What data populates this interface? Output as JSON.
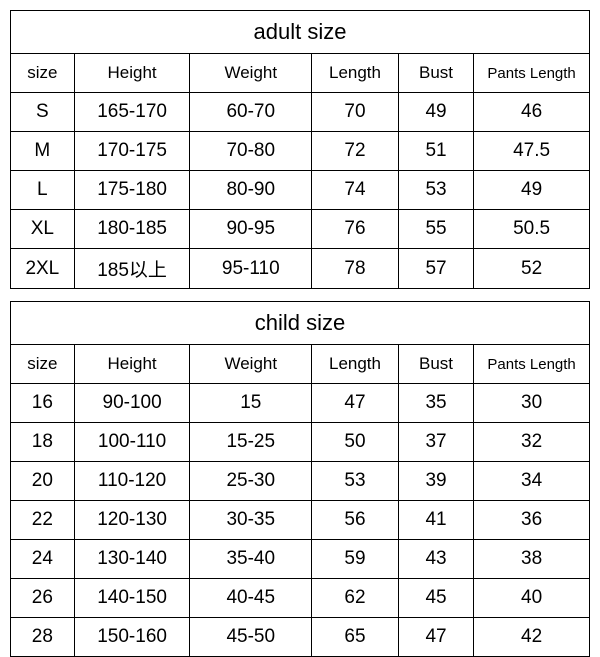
{
  "adult_table": {
    "title": "adult size",
    "columns": [
      "size",
      "Height",
      "Weight",
      "Length",
      "Bust",
      "Pants Length"
    ],
    "rows": [
      [
        "S",
        "165-170",
        "60-70",
        "70",
        "49",
        "46"
      ],
      [
        "M",
        "170-175",
        "70-80",
        "72",
        "51",
        "47.5"
      ],
      [
        "L",
        "175-180",
        "80-90",
        "74",
        "53",
        "49"
      ],
      [
        "XL",
        "180-185",
        "90-95",
        "76",
        "55",
        "50.5"
      ],
      [
        "2XL",
        "185以上",
        "95-110",
        "78",
        "57",
        "52"
      ]
    ]
  },
  "child_table": {
    "title": "child size",
    "columns": [
      "size",
      "Height",
      "Weight",
      "Length",
      "Bust",
      "Pants Length"
    ],
    "rows": [
      [
        "16",
        "90-100",
        "15",
        "47",
        "35",
        "30"
      ],
      [
        "18",
        "100-110",
        "15-25",
        "50",
        "37",
        "32"
      ],
      [
        "20",
        "110-120",
        "25-30",
        "53",
        "39",
        "34"
      ],
      [
        "22",
        "120-130",
        "30-35",
        "56",
        "41",
        "36"
      ],
      [
        "24",
        "130-140",
        "35-40",
        "59",
        "43",
        "38"
      ],
      [
        "26",
        "140-150",
        "40-45",
        "62",
        "45",
        "40"
      ],
      [
        "28",
        "150-160",
        "45-50",
        "65",
        "47",
        "42"
      ]
    ]
  },
  "styling": {
    "border_color": "#000000",
    "background_color": "#ffffff",
    "text_color": "#000000",
    "title_fontsize": 22,
    "header_fontsize": 17,
    "cell_fontsize": 19,
    "font_family": "Arial, sans-serif"
  }
}
